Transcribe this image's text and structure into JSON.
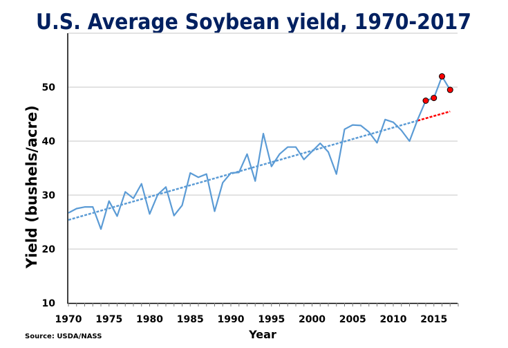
{
  "chart_data": {
    "type": "line",
    "title": "U.S. Average Soybean yield, 1970-2017",
    "xlabel": "Year",
    "ylabel": "Yield (bushels/acre)",
    "source": "Source: USDA/NASS",
    "xlim": [
      1970,
      2017
    ],
    "ylim": [
      10,
      60
    ],
    "x_ticks": [
      "1970",
      "1975",
      "1980",
      "1985",
      "1990",
      "1995",
      "2000",
      "2005",
      "2010",
      "2015"
    ],
    "y_ticks": [
      "10",
      "20",
      "30",
      "40",
      "50"
    ],
    "grid": true,
    "x": [
      1970,
      1971,
      1972,
      1973,
      1974,
      1975,
      1976,
      1977,
      1978,
      1979,
      1980,
      1981,
      1982,
      1983,
      1984,
      1985,
      1986,
      1987,
      1988,
      1989,
      1990,
      1991,
      1992,
      1993,
      1994,
      1995,
      1996,
      1997,
      1998,
      1999,
      2000,
      2001,
      2002,
      2003,
      2004,
      2005,
      2006,
      2007,
      2008,
      2009,
      2010,
      2011,
      2012,
      2013,
      2014,
      2015,
      2016,
      2017
    ],
    "series": [
      {
        "values": [
          26.7,
          27.5,
          27.8,
          27.8,
          23.7,
          28.9,
          26.1,
          30.6,
          29.4,
          32.1,
          26.5,
          30.1,
          31.5,
          26.2,
          28.1,
          34.1,
          33.3,
          33.9,
          27.0,
          32.3,
          34.1,
          34.2,
          37.6,
          32.6,
          41.4,
          35.3,
          37.6,
          38.9,
          38.9,
          36.6,
          38.1,
          39.6,
          38.0,
          33.9,
          42.2,
          43.0,
          42.9,
          41.7,
          39.7,
          44.0,
          43.5,
          42.0,
          40.0,
          44.0,
          47.5,
          48.0,
          52.0,
          49.5
        ],
        "color": "#5b9bd5"
      }
    ],
    "highlighted_points": {
      "x": [
        2014,
        2015,
        2016,
        2017
      ],
      "color": "#ff0000"
    },
    "trend": [
      {
        "x": [
          1970,
          2013
        ],
        "y": [
          25.4,
          43.8
        ],
        "color": "#5b9bd5",
        "style": "dashed"
      },
      {
        "x": [
          2013,
          2017
        ],
        "y": [
          43.8,
          45.5
        ],
        "color": "#ff0000",
        "style": "dashed"
      }
    ],
    "colors": {
      "title": "#002060",
      "axis": "#000000",
      "grid": "#d9d9d9"
    }
  }
}
